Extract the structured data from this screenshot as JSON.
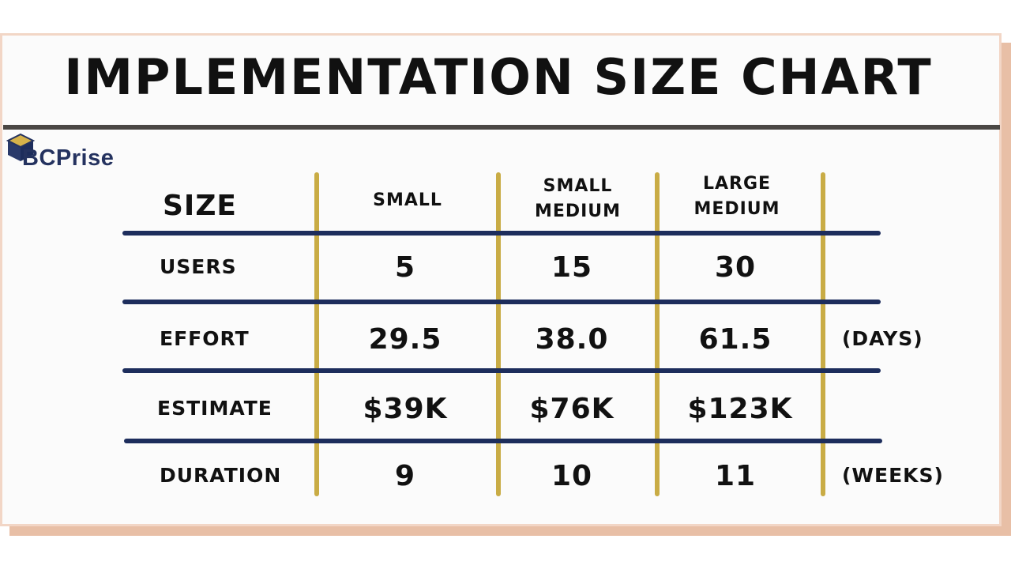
{
  "title": "IMPLEMENTATION SIZE CHART",
  "logo": {
    "text": "BCPrise",
    "icon": "cube-logo-icon"
  },
  "colors": {
    "header_rule": "#4a4744",
    "row_rule": "#1d2d5c",
    "column_rule": "#c9ac45",
    "logo_text": "#24325f"
  },
  "table": {
    "corner_label": "SIZE",
    "columns": [
      {
        "line1": "SMALL",
        "line2": ""
      },
      {
        "line1": "SMALL",
        "line2": "MEDIUM"
      },
      {
        "line1": "LARGE",
        "line2": "MEDIUM"
      }
    ],
    "rows": [
      {
        "label": "USERS",
        "values": [
          "5",
          "15",
          "30"
        ],
        "unit": ""
      },
      {
        "label": "EFFORT",
        "values": [
          "29.5",
          "38.0",
          "61.5"
        ],
        "unit": "(DAYS)"
      },
      {
        "label": "ESTIMATE",
        "values": [
          "$39K",
          "$76K",
          "$123K"
        ],
        "unit": ""
      },
      {
        "label": "DURATION",
        "values": [
          "9",
          "10",
          "11"
        ],
        "unit": "(WEEKS)"
      }
    ]
  }
}
